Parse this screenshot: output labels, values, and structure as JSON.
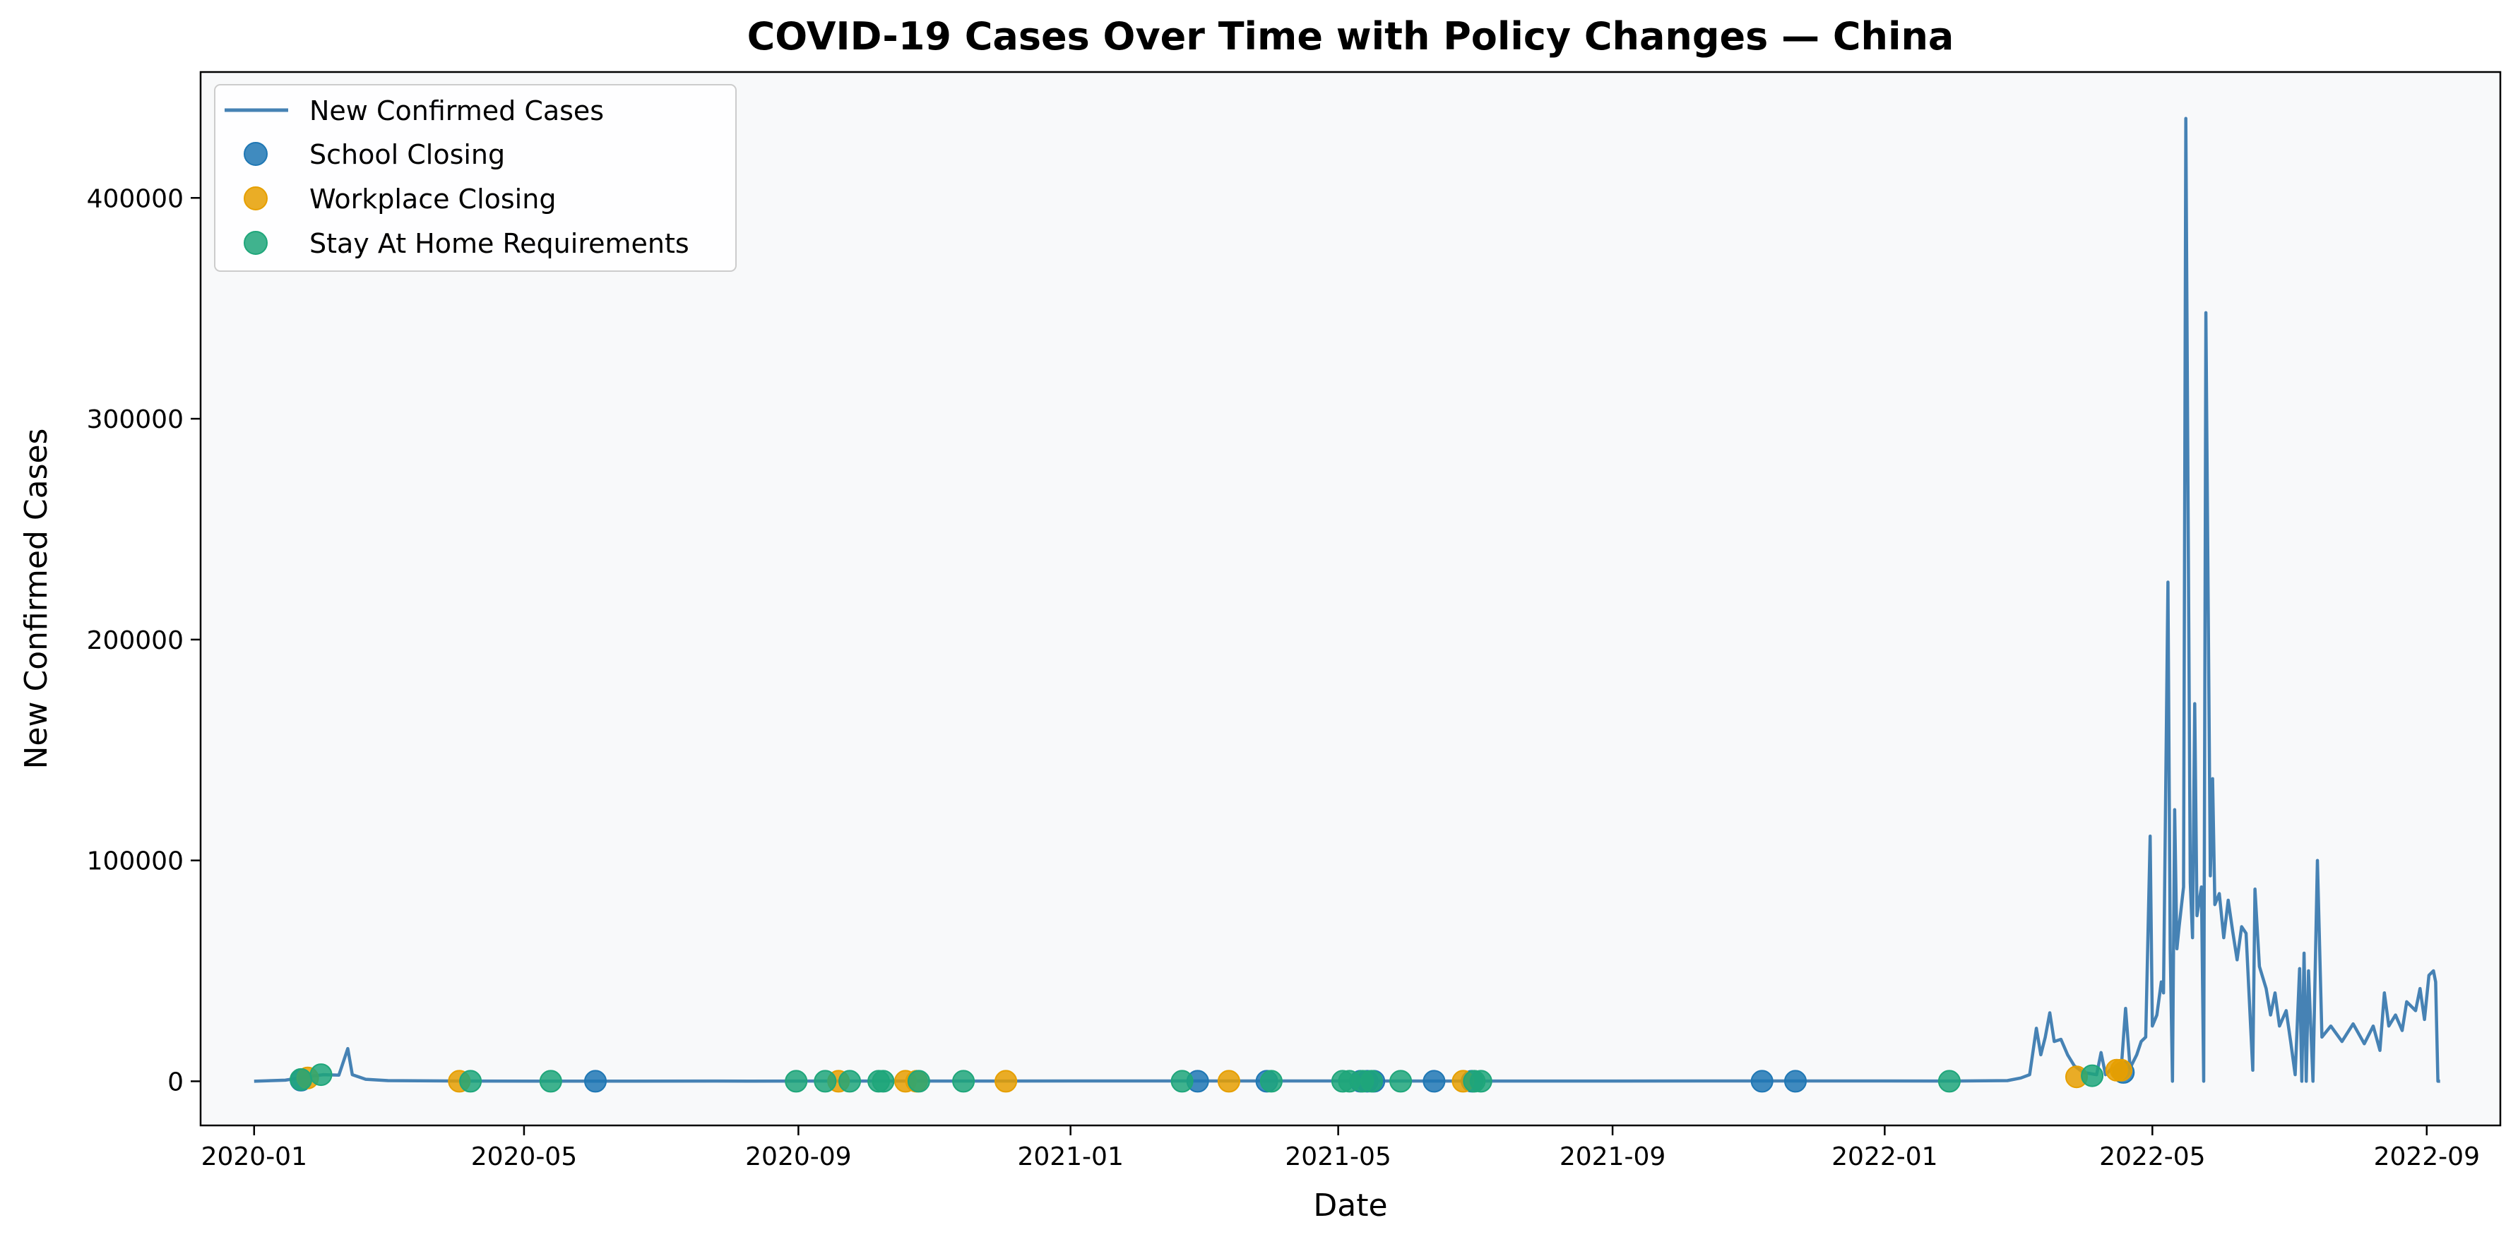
{
  "chart_data": {
    "type": "line",
    "title": "COVID-19 Cases Over Time with Policy Changes — China",
    "xlabel": "Date",
    "ylabel": "New Confirmed Cases",
    "xlim": [
      "2019-12-08",
      "2022-10-04"
    ],
    "ylim": [
      -20000,
      457000
    ],
    "x_ticks": [
      "2020-01",
      "2020-05",
      "2020-09",
      "2021-01",
      "2021-05",
      "2021-09",
      "2022-01",
      "2022-05",
      "2022-09"
    ],
    "y_ticks": [
      0,
      100000,
      200000,
      300000,
      400000
    ],
    "grid": false,
    "legend_position": "top-left",
    "colors": {
      "line": "#4682b4",
      "school": "#1f77b4",
      "workplace": "#e69f00",
      "stay_home": "#1fa67a",
      "plot_background": "#f8f9fa"
    },
    "series": [
      {
        "name": "New Confirmed Cases",
        "kind": "line",
        "points": [
          [
            "2020-01-01",
            0
          ],
          [
            "2020-01-15",
            500
          ],
          [
            "2020-01-23",
            1800
          ],
          [
            "2020-02-01",
            3000
          ],
          [
            "2020-02-08",
            2800
          ],
          [
            "2020-02-12",
            14800
          ],
          [
            "2020-02-14",
            3000
          ],
          [
            "2020-02-20",
            900
          ],
          [
            "2020-03-01",
            300
          ],
          [
            "2020-04-01",
            100
          ],
          [
            "2020-06-01",
            30
          ],
          [
            "2020-07-25",
            120
          ],
          [
            "2020-08-10",
            90
          ],
          [
            "2021-01-15",
            150
          ],
          [
            "2021-08-05",
            120
          ],
          [
            "2022-01-01",
            150
          ],
          [
            "2022-02-01",
            100
          ],
          [
            "2022-02-25",
            300
          ],
          [
            "2022-03-03",
            1500
          ],
          [
            "2022-03-07",
            3000
          ],
          [
            "2022-03-10",
            24000
          ],
          [
            "2022-03-12",
            12000
          ],
          [
            "2022-03-14",
            20000
          ],
          [
            "2022-03-16",
            31000
          ],
          [
            "2022-03-18",
            18000
          ],
          [
            "2022-03-21",
            19000
          ],
          [
            "2022-03-24",
            12000
          ],
          [
            "2022-03-27",
            7000
          ],
          [
            "2022-03-31",
            4000
          ],
          [
            "2022-04-03",
            3500
          ],
          [
            "2022-04-06",
            3000
          ],
          [
            "2022-04-08",
            13000
          ],
          [
            "2022-04-10",
            3000
          ],
          [
            "2022-04-13",
            6000
          ],
          [
            "2022-04-17",
            5000
          ],
          [
            "2022-04-19",
            33000
          ],
          [
            "2022-04-21",
            6000
          ],
          [
            "2022-04-24",
            12000
          ],
          [
            "2022-04-26",
            18000
          ],
          [
            "2022-04-28",
            20000
          ],
          [
            "2022-04-30",
            111000
          ],
          [
            "2022-05-01",
            25000
          ],
          [
            "2022-05-03",
            30000
          ],
          [
            "2022-05-05",
            45000
          ],
          [
            "2022-05-06",
            40000
          ],
          [
            "2022-05-08",
            226000
          ],
          [
            "2022-05-09",
            60000
          ],
          [
            "2022-05-10",
            0
          ],
          [
            "2022-05-11",
            123000
          ],
          [
            "2022-05-12",
            60000
          ],
          [
            "2022-05-13",
            70000
          ],
          [
            "2022-05-15",
            88000
          ],
          [
            "2022-05-16",
            436000
          ],
          [
            "2022-05-18",
            90000
          ],
          [
            "2022-05-19",
            65000
          ],
          [
            "2022-05-20",
            171000
          ],
          [
            "2022-05-21",
            75000
          ],
          [
            "2022-05-23",
            88000
          ],
          [
            "2022-05-24",
            0
          ],
          [
            "2022-05-25",
            348000
          ],
          [
            "2022-05-27",
            93000
          ],
          [
            "2022-05-28",
            137000
          ],
          [
            "2022-05-29",
            80000
          ],
          [
            "2022-05-31",
            85000
          ],
          [
            "2022-06-02",
            65000
          ],
          [
            "2022-06-04",
            82000
          ],
          [
            "2022-06-06",
            68000
          ],
          [
            "2022-06-08",
            55000
          ],
          [
            "2022-06-10",
            70000
          ],
          [
            "2022-06-12",
            67000
          ],
          [
            "2022-06-15",
            5000
          ],
          [
            "2022-06-16",
            87000
          ],
          [
            "2022-06-18",
            52000
          ],
          [
            "2022-06-21",
            42000
          ],
          [
            "2022-06-23",
            30000
          ],
          [
            "2022-06-25",
            40000
          ],
          [
            "2022-06-27",
            25000
          ],
          [
            "2022-06-30",
            32000
          ],
          [
            "2022-07-02",
            18000
          ],
          [
            "2022-07-04",
            3000
          ],
          [
            "2022-07-06",
            51000
          ],
          [
            "2022-07-07",
            0
          ],
          [
            "2022-07-08",
            58000
          ],
          [
            "2022-07-09",
            0
          ],
          [
            "2022-07-10",
            50000
          ],
          [
            "2022-07-12",
            0
          ],
          [
            "2022-07-14",
            100000
          ],
          [
            "2022-07-16",
            20000
          ],
          [
            "2022-07-20",
            25000
          ],
          [
            "2022-07-25",
            18000
          ],
          [
            "2022-07-30",
            26000
          ],
          [
            "2022-08-04",
            17000
          ],
          [
            "2022-08-08",
            25000
          ],
          [
            "2022-08-11",
            14000
          ],
          [
            "2022-08-13",
            40000
          ],
          [
            "2022-08-15",
            25000
          ],
          [
            "2022-08-18",
            30000
          ],
          [
            "2022-08-21",
            23000
          ],
          [
            "2022-08-23",
            36000
          ],
          [
            "2022-08-27",
            32000
          ],
          [
            "2022-08-29",
            42000
          ],
          [
            "2022-08-31",
            28000
          ],
          [
            "2022-09-02",
            48000
          ],
          [
            "2022-09-04",
            50000
          ],
          [
            "2022-09-05",
            45000
          ],
          [
            "2022-09-06",
            0
          ],
          [
            "2022-09-07",
            0
          ]
        ]
      },
      {
        "name": "School Closing",
        "kind": "scatter",
        "points": [
          [
            "2020-01-22",
            500
          ],
          [
            "2020-06-02",
            0
          ],
          [
            "2021-02-27",
            0
          ],
          [
            "2021-03-30",
            0
          ],
          [
            "2021-05-11",
            0
          ],
          [
            "2021-05-14",
            0
          ],
          [
            "2021-05-17",
            0
          ],
          [
            "2021-06-13",
            0
          ],
          [
            "2021-06-30",
            0
          ],
          [
            "2021-11-07",
            0
          ],
          [
            "2021-11-22",
            0
          ],
          [
            "2022-04-18",
            4000
          ]
        ]
      },
      {
        "name": "Workplace Closing",
        "kind": "scatter",
        "points": [
          [
            "2020-01-25",
            1500
          ],
          [
            "2020-04-02",
            0
          ],
          [
            "2020-09-19",
            0
          ],
          [
            "2020-10-19",
            0
          ],
          [
            "2020-10-24",
            0
          ],
          [
            "2020-12-03",
            0
          ],
          [
            "2021-03-13",
            0
          ],
          [
            "2021-06-26",
            0
          ],
          [
            "2022-03-28",
            2000
          ],
          [
            "2022-04-15",
            5000
          ],
          [
            "2022-04-17",
            5000
          ]
        ]
      },
      {
        "name": "Stay At Home Requirements",
        "kind": "scatter",
        "points": [
          [
            "2020-01-22",
            800
          ],
          [
            "2020-01-31",
            3000
          ],
          [
            "2020-04-07",
            0
          ],
          [
            "2020-05-13",
            0
          ],
          [
            "2020-08-31",
            0
          ],
          [
            "2020-09-13",
            0
          ],
          [
            "2020-09-24",
            0
          ],
          [
            "2020-10-07",
            0
          ],
          [
            "2020-10-09",
            0
          ],
          [
            "2020-10-25",
            0
          ],
          [
            "2020-11-14",
            0
          ],
          [
            "2021-02-20",
            0
          ],
          [
            "2021-04-01",
            0
          ],
          [
            "2021-05-03",
            0
          ],
          [
            "2021-05-06",
            0
          ],
          [
            "2021-05-12",
            0
          ],
          [
            "2021-05-16",
            0
          ],
          [
            "2021-05-29",
            0
          ],
          [
            "2021-07-01",
            0
          ],
          [
            "2021-07-04",
            0
          ],
          [
            "2022-01-30",
            0
          ],
          [
            "2022-04-04",
            2500
          ]
        ]
      }
    ]
  }
}
